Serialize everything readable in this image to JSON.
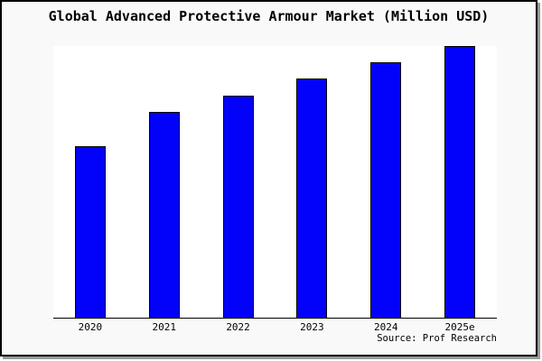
{
  "window": {
    "background_color": "#f9f9f9",
    "frame_border_color": "#000000",
    "shadow_color": "#999999",
    "plot_background_color": "#ffffff",
    "axis_color": "#000000",
    "text_color": "#000000"
  },
  "chart": {
    "title": "Global Advanced Protective Armour Market (Million USD)",
    "source": "Source: Prof Research",
    "bar_color": "#0202fa",
    "bar_border_color": "#000000"
  },
  "chart_data": {
    "type": "bar",
    "title": "Global Advanced Protective Armour Market (Million USD)",
    "categories": [
      "2020",
      "2021",
      "2022",
      "2023",
      "2024",
      "2025e"
    ],
    "values": [
      189,
      227,
      245,
      264,
      282,
      300
    ],
    "value_scale": "relative bar-height units; chart displays no y-axis ticks or numeric labels",
    "xlabel": "",
    "ylabel": "",
    "ylim": [
      0,
      300
    ],
    "grid": false,
    "legend": false,
    "x_axis_line": true,
    "y_axis_line": false,
    "annotations": [
      "Source: Prof Research"
    ]
  }
}
